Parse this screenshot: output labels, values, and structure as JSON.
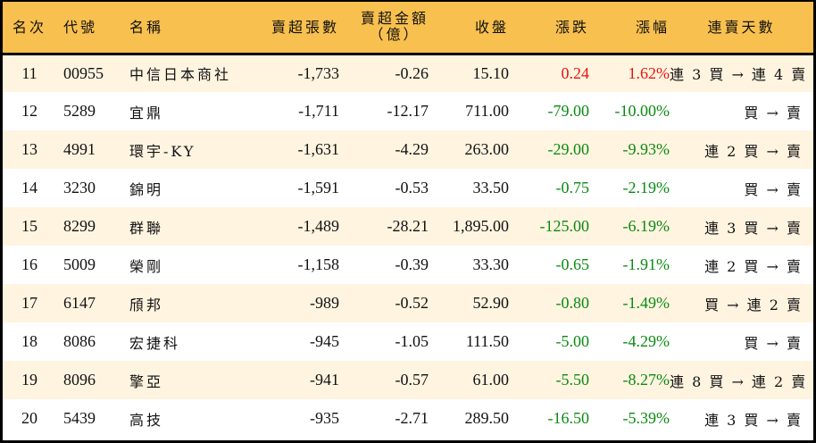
{
  "table": {
    "headers": {
      "rank": "名次",
      "code": "代號",
      "name": "名稱",
      "net_sell_lots": "賣超張數",
      "net_sell_amount_line1": "賣超金額",
      "net_sell_amount_line2": "（億）",
      "close": "收盤",
      "change": "漲跌",
      "change_pct": "漲幅",
      "streak": "連賣天數"
    },
    "colors": {
      "header_bg": "#F8C04E",
      "row_odd_bg": "#FFF4E0",
      "row_even_bg": "#FFFFFF",
      "up": "#E8120F",
      "down": "#0A8A12"
    },
    "rows": [
      {
        "rank": "11",
        "code": "00955",
        "name": "中信日本商社",
        "lots": "-1,733",
        "amount": "-0.26",
        "close": "15.10",
        "change": "0.24",
        "pct": "1.62%",
        "dir": "up",
        "streak": "連 3 買 → 連 4 賣"
      },
      {
        "rank": "12",
        "code": "5289",
        "name": "宜鼎",
        "lots": "-1,711",
        "amount": "-12.17",
        "close": "711.00",
        "change": "-79.00",
        "pct": "-10.00%",
        "dir": "down",
        "streak": "買 → 賣"
      },
      {
        "rank": "13",
        "code": "4991",
        "name": "環宇-KY",
        "lots": "-1,631",
        "amount": "-4.29",
        "close": "263.00",
        "change": "-29.00",
        "pct": "-9.93%",
        "dir": "down",
        "streak": "連 2 買 → 賣"
      },
      {
        "rank": "14",
        "code": "3230",
        "name": "錦明",
        "lots": "-1,591",
        "amount": "-0.53",
        "close": "33.50",
        "change": "-0.75",
        "pct": "-2.19%",
        "dir": "down",
        "streak": "買 → 賣"
      },
      {
        "rank": "15",
        "code": "8299",
        "name": "群聯",
        "lots": "-1,489",
        "amount": "-28.21",
        "close": "1,895.00",
        "change": "-125.00",
        "pct": "-6.19%",
        "dir": "down",
        "streak": "連 3 買 → 賣"
      },
      {
        "rank": "16",
        "code": "5009",
        "name": "榮剛",
        "lots": "-1,158",
        "amount": "-0.39",
        "close": "33.30",
        "change": "-0.65",
        "pct": "-1.91%",
        "dir": "down",
        "streak": "連 2 買 → 賣"
      },
      {
        "rank": "17",
        "code": "6147",
        "name": "頎邦",
        "lots": "-989",
        "amount": "-0.52",
        "close": "52.90",
        "change": "-0.80",
        "pct": "-1.49%",
        "dir": "down",
        "streak": "買 → 連 2 賣"
      },
      {
        "rank": "18",
        "code": "8086",
        "name": "宏捷科",
        "lots": "-945",
        "amount": "-1.05",
        "close": "111.50",
        "change": "-5.00",
        "pct": "-4.29%",
        "dir": "down",
        "streak": "買 → 賣"
      },
      {
        "rank": "19",
        "code": "8096",
        "name": "擎亞",
        "lots": "-941",
        "amount": "-0.57",
        "close": "61.00",
        "change": "-5.50",
        "pct": "-8.27%",
        "dir": "down",
        "streak": "連 8 買 → 連 2 賣"
      },
      {
        "rank": "20",
        "code": "5439",
        "name": "高技",
        "lots": "-935",
        "amount": "-2.71",
        "close": "289.50",
        "change": "-16.50",
        "pct": "-5.39%",
        "dir": "down",
        "streak": "連 3 買 → 賣"
      }
    ]
  }
}
